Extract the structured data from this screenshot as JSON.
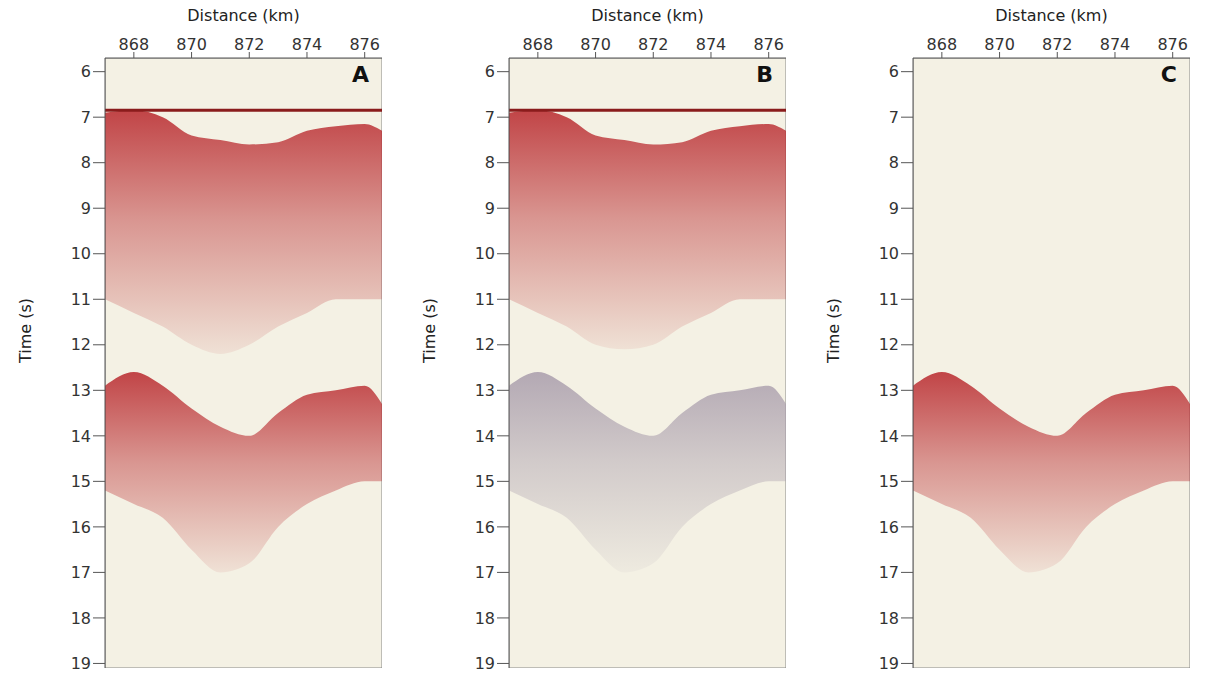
{
  "chart_data": [
    {
      "type": "area",
      "title": "A",
      "xlabel": "Distance (km)",
      "ylabel": "Time (s)",
      "x": [
        867,
        868,
        869,
        870,
        871,
        872,
        873,
        874,
        875,
        876,
        876.6
      ],
      "series": [
        {
          "color": "#b8262b",
          "values": [
            [
              6.9,
              11.0
            ],
            [
              6.85,
              11.3
            ],
            [
              7.0,
              11.6
            ],
            [
              7.4,
              12.0
            ],
            [
              7.5,
              12.2
            ],
            [
              7.6,
              12.0
            ],
            [
              7.55,
              11.6
            ],
            [
              7.3,
              11.3
            ],
            [
              7.2,
              11.0
            ],
            [
              7.15,
              11.0
            ],
            [
              7.3,
              11.0
            ]
          ]
        },
        {
          "color": "#b8262b",
          "values": [
            [
              12.9,
              15.2
            ],
            [
              12.6,
              15.5
            ],
            [
              12.9,
              15.8
            ],
            [
              13.4,
              16.5
            ],
            [
              13.8,
              17.0
            ],
            [
              14.0,
              16.8
            ],
            [
              13.5,
              16.0
            ],
            [
              13.1,
              15.5
            ],
            [
              13.0,
              15.2
            ],
            [
              12.9,
              15.0
            ],
            [
              13.3,
              15.0
            ]
          ]
        },
        {
          "type": "line",
          "color": "#8a1c1c",
          "values": [
            6.85,
            6.85,
            6.85,
            6.85,
            6.85,
            6.85,
            6.85,
            6.85,
            6.85,
            6.85,
            6.85
          ]
        }
      ],
      "xlim": [
        867,
        876.6
      ],
      "xticks": [
        868,
        870,
        872,
        874,
        876
      ],
      "ylim": [
        5.7,
        19.1
      ],
      "yticks": [
        6,
        7,
        8,
        9,
        10,
        11,
        12,
        13,
        14,
        15,
        16,
        17,
        18,
        19
      ]
    },
    {
      "type": "area",
      "title": "B",
      "xlabel": "Distance (km)",
      "ylabel": "Time (s)",
      "x": [
        867,
        868,
        869,
        870,
        871,
        872,
        873,
        874,
        875,
        876,
        876.6
      ],
      "series": [
        {
          "color": "#b8262b",
          "values": [
            [
              6.9,
              11.0
            ],
            [
              6.85,
              11.3
            ],
            [
              7.0,
              11.6
            ],
            [
              7.4,
              12.0
            ],
            [
              7.5,
              12.1
            ],
            [
              7.6,
              12.0
            ],
            [
              7.55,
              11.6
            ],
            [
              7.3,
              11.3
            ],
            [
              7.2,
              11.0
            ],
            [
              7.15,
              11.0
            ],
            [
              7.3,
              11.0
            ]
          ]
        },
        {
          "color": "#a89cab",
          "values": [
            [
              12.9,
              15.2
            ],
            [
              12.6,
              15.5
            ],
            [
              12.9,
              15.8
            ],
            [
              13.4,
              16.5
            ],
            [
              13.8,
              17.0
            ],
            [
              14.0,
              16.8
            ],
            [
              13.5,
              16.0
            ],
            [
              13.1,
              15.5
            ],
            [
              13.0,
              15.2
            ],
            [
              12.9,
              15.0
            ],
            [
              13.3,
              15.0
            ]
          ]
        },
        {
          "type": "line",
          "color": "#8a1c1c",
          "values": [
            6.85,
            6.85,
            6.85,
            6.85,
            6.85,
            6.85,
            6.85,
            6.85,
            6.85,
            6.85,
            6.85
          ]
        }
      ],
      "xlim": [
        867,
        876.6
      ],
      "xticks": [
        868,
        870,
        872,
        874,
        876
      ],
      "ylim": [
        5.7,
        19.1
      ],
      "yticks": [
        6,
        7,
        8,
        9,
        10,
        11,
        12,
        13,
        14,
        15,
        16,
        17,
        18,
        19
      ]
    },
    {
      "type": "area",
      "title": "C",
      "xlabel": "Distance (km)",
      "ylabel": "Time (s)",
      "x": [
        867,
        868,
        869,
        870,
        871,
        872,
        873,
        874,
        875,
        876,
        876.6
      ],
      "series": [
        {
          "color": "#b8262b",
          "values": [
            [
              12.9,
              15.2
            ],
            [
              12.6,
              15.5
            ],
            [
              12.9,
              15.8
            ],
            [
              13.4,
              16.5
            ],
            [
              13.8,
              17.0
            ],
            [
              14.0,
              16.8
            ],
            [
              13.5,
              16.0
            ],
            [
              13.1,
              15.5
            ],
            [
              13.0,
              15.2
            ],
            [
              12.9,
              15.0
            ],
            [
              13.3,
              15.0
            ]
          ]
        }
      ],
      "xlim": [
        867,
        876.6
      ],
      "xticks": [
        868,
        870,
        872,
        874,
        876
      ],
      "ylim": [
        5.7,
        19.1
      ],
      "yticks": [
        6,
        7,
        8,
        9,
        10,
        11,
        12,
        13,
        14,
        15,
        16,
        17,
        18,
        19
      ]
    }
  ]
}
